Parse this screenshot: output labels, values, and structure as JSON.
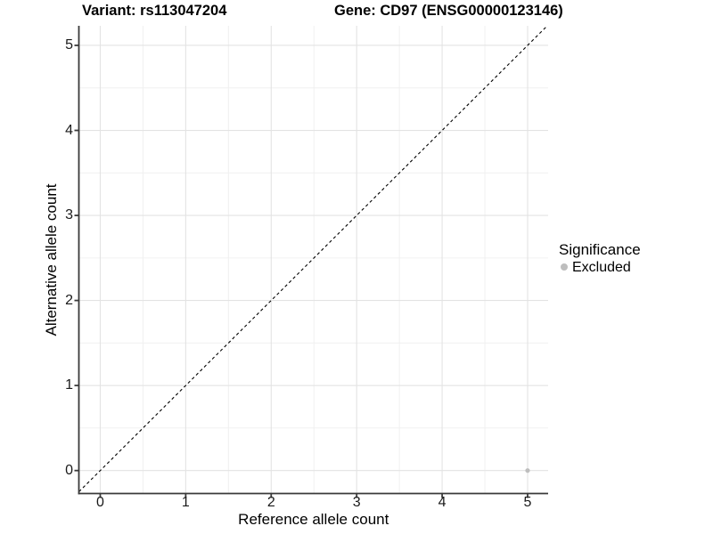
{
  "titles": {
    "variant": "Variant: rs113047204",
    "gene": "Gene: CD97 (ENSG00000123146)"
  },
  "legend": {
    "title": "Significance",
    "items": [
      {
        "label": "Excluded",
        "color": "#bebebe"
      }
    ]
  },
  "chart_data": {
    "type": "scatter",
    "title": "Variant: rs113047204   Gene: CD97 (ENSG00000123146)",
    "xlabel": "Reference allele count",
    "ylabel": "Alternative allele count",
    "x_ticks": [
      0,
      1,
      2,
      3,
      4,
      5
    ],
    "y_ticks": [
      0,
      1,
      2,
      3,
      4,
      5
    ],
    "xlim": [
      -0.25,
      5.24
    ],
    "ylim": [
      -0.27,
      5.23
    ],
    "grid": {
      "major": [
        0,
        1,
        2,
        3,
        4,
        5
      ],
      "minor": [
        0.5,
        1.5,
        2.5,
        3.5,
        4.5
      ]
    },
    "reference_line": {
      "type": "identity y=x",
      "style": "dashed",
      "color": "#000000"
    },
    "series": [
      {
        "name": "Excluded",
        "color": "#bebebe",
        "points": [
          {
            "x": 5,
            "y": 0
          }
        ]
      }
    ],
    "legend_title": "Significance",
    "legend_position": "right"
  },
  "colors": {
    "background": "#ffffff",
    "major_grid": "#e3e3e3",
    "minor_grid": "#f0f0f0",
    "axis": "#3a3a3a",
    "point": "#bebebe",
    "dashed_line": "#000000"
  }
}
